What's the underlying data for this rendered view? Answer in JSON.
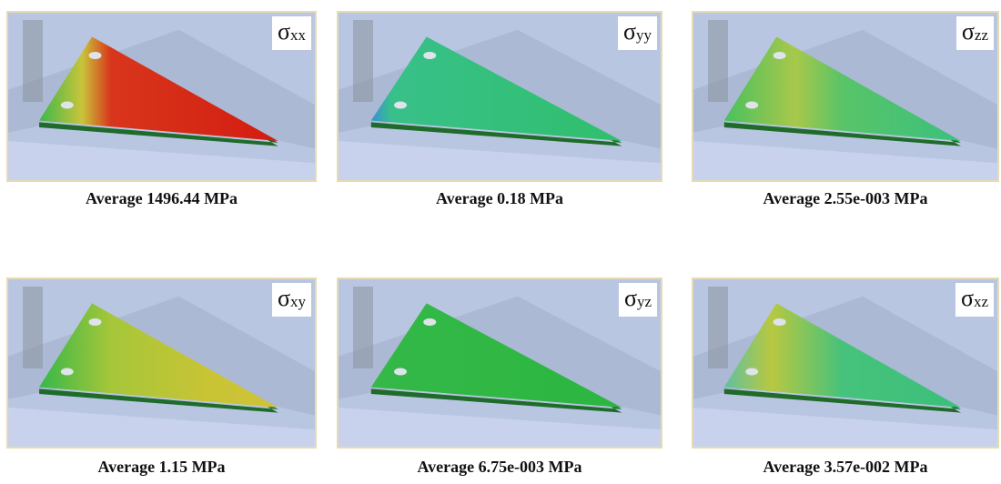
{
  "panels": [
    {
      "symbol": "σ",
      "subscript": "xx",
      "caption": "Average 1496.44 MPa"
    },
    {
      "symbol": "σ",
      "subscript": "yy",
      "caption": "Average 0.18 MPa"
    },
    {
      "symbol": "σ",
      "subscript": "zz",
      "caption": "Average 2.55e-003 MPa"
    },
    {
      "symbol": "σ",
      "subscript": "xy",
      "caption": "Average 1.15 MPa"
    },
    {
      "symbol": "σ",
      "subscript": "yz",
      "caption": "Average 6.75e-003 MPa"
    },
    {
      "symbol": "σ",
      "subscript": "xz",
      "caption": "Average 3.57e-002 MPa"
    }
  ]
}
